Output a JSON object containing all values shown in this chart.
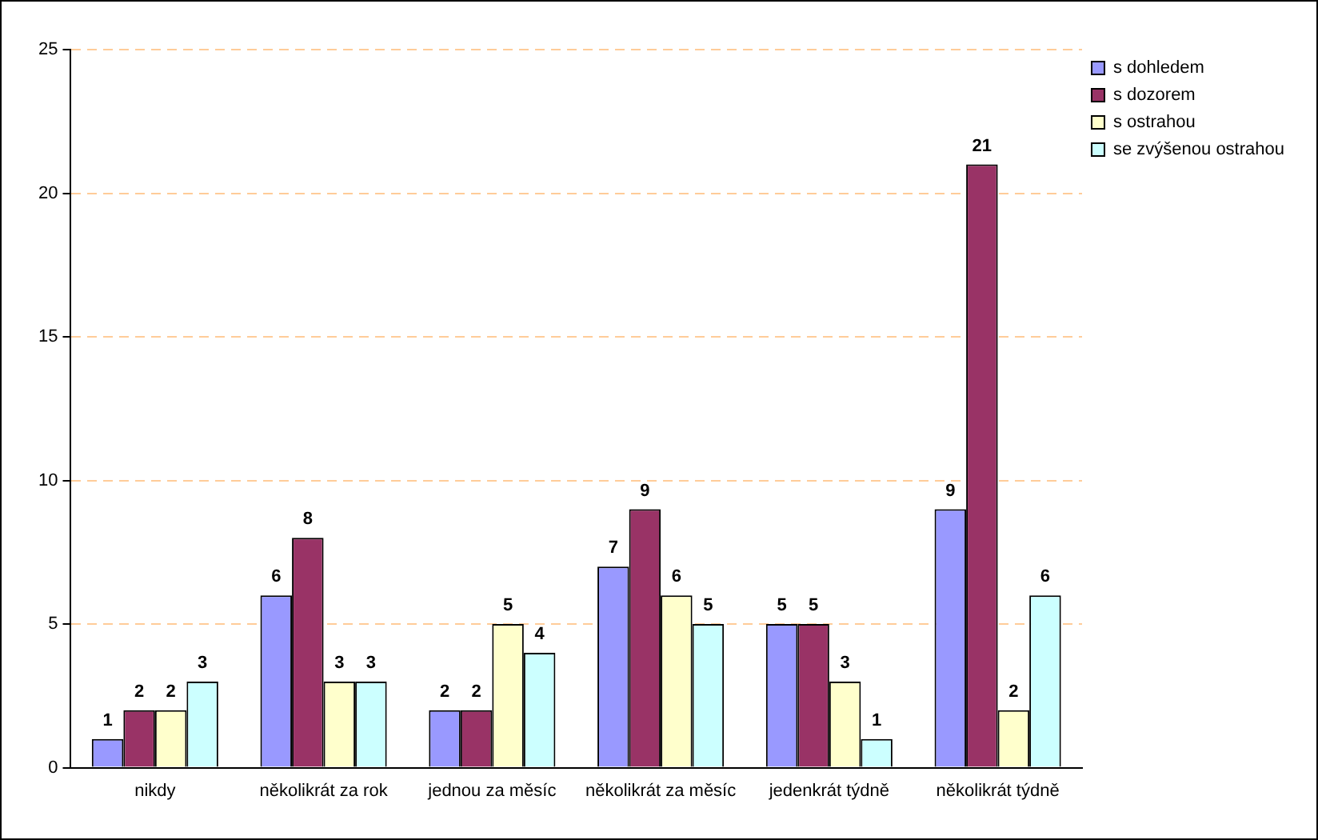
{
  "chart_data": {
    "type": "bar",
    "categories": [
      "nikdy",
      "několikrát za rok",
      "jednou za měsíc",
      "několikrát za měsíc",
      "jedenkrát týdně",
      "několikrát týdně"
    ],
    "series": [
      {
        "name": "s dohledem",
        "color": "#9999ff",
        "values": [
          1,
          6,
          2,
          7,
          5,
          9
        ]
      },
      {
        "name": "s dozorem",
        "color": "#993366",
        "values": [
          2,
          8,
          2,
          9,
          5,
          21
        ]
      },
      {
        "name": "s ostrahou",
        "color": "#ffffcc",
        "values": [
          2,
          3,
          5,
          6,
          3,
          2
        ]
      },
      {
        "name": "se zvýšenou ostrahou",
        "color": "#ccffff",
        "values": [
          3,
          3,
          4,
          5,
          1,
          6
        ]
      }
    ],
    "ylim": [
      0,
      25
    ],
    "yticks": [
      0,
      5,
      10,
      15,
      20,
      25
    ],
    "grid": "y",
    "legend": "top right",
    "data_labels": true
  }
}
